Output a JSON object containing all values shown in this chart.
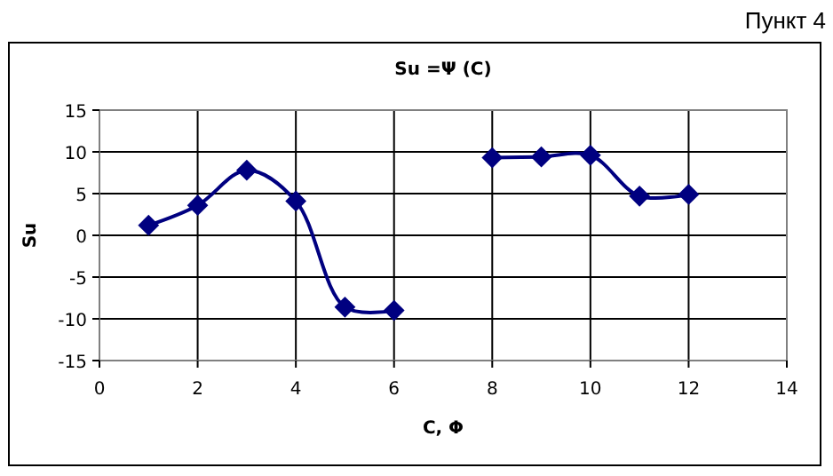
{
  "chart_data": {
    "type": "line",
    "title": "Su =Ψ (C)",
    "xlabel": "C, Φ",
    "ylabel": "Su",
    "annotations": [
      "Пункт 4"
    ],
    "x": [
      1,
      2,
      3,
      4,
      5,
      6,
      7,
      8,
      9,
      10,
      11,
      12
    ],
    "series": [
      {
        "color": "#000080",
        "values": [
          1.2,
          3.6,
          7.8,
          4.1,
          -8.6,
          -9.0,
          null,
          9.3,
          9.4,
          9.6,
          4.7,
          4.9
        ]
      }
    ],
    "xlim": [
      0,
      14
    ],
    "xticks": [
      0,
      2,
      4,
      6,
      8,
      10,
      12,
      14
    ],
    "ylim": [
      -15,
      15
    ],
    "yticks": [
      -15,
      -10,
      -5,
      0,
      5,
      10,
      15
    ],
    "grid": true,
    "marker": "diamond",
    "line_style": "solid"
  }
}
